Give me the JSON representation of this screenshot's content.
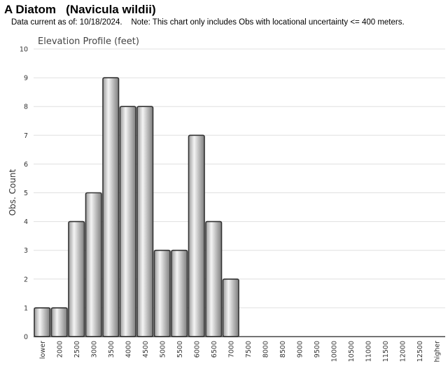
{
  "header": {
    "title": "A Diatom   (Navicula wildii)",
    "subtitle": "Data current as of: 10/18/2024.    Note: This chart only includes Obs with locational uncertainty <= 400 meters."
  },
  "chart_data": {
    "type": "bar",
    "title": "Elevation Profile (feet)",
    "xlabel": "",
    "ylabel": "Obs. Count",
    "ylim": [
      0,
      10
    ],
    "yticks": [
      "0",
      "1",
      "2",
      "3",
      "4",
      "5",
      "6",
      "7",
      "8",
      "9",
      "10"
    ],
    "grid": true,
    "categories": [
      "lower",
      "2000",
      "2500",
      "3000",
      "3500",
      "4000",
      "4500",
      "5000",
      "5500",
      "6000",
      "6500",
      "7000",
      "7500",
      "8000",
      "8500",
      "9000",
      "9500",
      "10000",
      "10500",
      "11000",
      "11500",
      "12000",
      "12500",
      "higher"
    ],
    "values": [
      1,
      1,
      4,
      5,
      9,
      8,
      8,
      3,
      3,
      7,
      4,
      2,
      0,
      0,
      0,
      0,
      0,
      0,
      0,
      0,
      0,
      0,
      0,
      0
    ],
    "colors": {
      "bar_edge": "#333333",
      "bar_light": "#f2f2f2",
      "bar_dark": "#8a8a8a",
      "grid": "#e0e0e0",
      "axis": "#222222"
    }
  }
}
